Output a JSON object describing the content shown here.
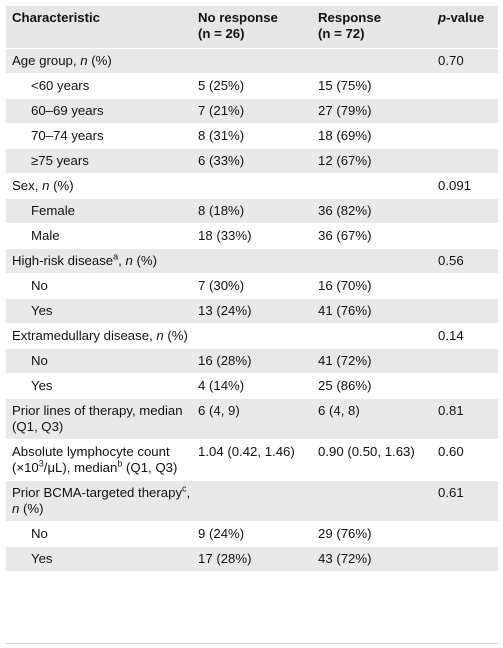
{
  "header": {
    "characteristic": "Characteristic",
    "no_response": "No response",
    "no_response_n": "(n = 26)",
    "response": "Response",
    "response_n": "(n = 72)",
    "pvalue_p": "p",
    "pvalue_rest": "-value"
  },
  "rows": {
    "age_group": {
      "label": "Age group, ",
      "n": "n",
      "rest": " (%)",
      "p": "0.70"
    },
    "age_lt60": {
      "label": "<60 years",
      "no": "5 (25%)",
      "yes": "15 (75%)"
    },
    "age_60_69": {
      "label": "60–69 years",
      "no": "7 (21%)",
      "yes": "27 (79%)"
    },
    "age_70_74": {
      "label": "70–74 years",
      "no": "8 (31%)",
      "yes": "18 (69%)"
    },
    "age_ge75": {
      "label": "≥75 years",
      "no": "6 (33%)",
      "yes": "12 (67%)"
    },
    "sex": {
      "label": "Sex, ",
      "n": "n",
      "rest": " (%)",
      "p": "0.091"
    },
    "female": {
      "label": "Female",
      "no": "8 (18%)",
      "yes": "36 (82%)"
    },
    "male": {
      "label": "Male",
      "no": "18 (33%)",
      "yes": "36 (67%)"
    },
    "high_risk": {
      "label": "High-risk disease",
      "sup": "a",
      "mid": ", ",
      "n": "n",
      "rest": " (%)",
      "p": "0.56"
    },
    "hr_no": {
      "label": "No",
      "no": "7 (30%)",
      "yes": "16 (70%)"
    },
    "hr_yes": {
      "label": "Yes",
      "no": "13 (24%)",
      "yes": "41 (76%)"
    },
    "extramed": {
      "label": "Extramedullary disease, ",
      "n": "n",
      "rest": " (%)",
      "p": "0.14"
    },
    "em_no": {
      "label": "No",
      "no": "16 (28%)",
      "yes": "41 (72%)"
    },
    "em_yes": {
      "label": "Yes",
      "no": "4 (14%)",
      "yes": "25 (86%)"
    },
    "prior_lines": {
      "label": "Prior lines of therapy, median (Q1, Q3)",
      "no": "6 (4, 9)",
      "yes": "6 (4, 8)",
      "p": "0.81"
    },
    "alc": {
      "label_a": "Absolute lymphocyte count (×10",
      "exp": "3",
      "label_b": "/μL), median",
      "sup": "b",
      "label_c": " (Q1, Q3)",
      "no": "1.04 (0.42, 1.46)",
      "yes": "0.90 (0.50, 1.63)",
      "p": "0.60"
    },
    "bcma": {
      "label": "Prior BCMA-targeted therapy",
      "sup": "c",
      "mid": ", ",
      "n": "n",
      "rest": " (%)",
      "p": "0.61"
    },
    "bcma_no": {
      "label": "No",
      "no": "9 (24%)",
      "yes": "29 (76%)"
    },
    "bcma_yes": {
      "label": "Yes",
      "no": "17 (28%)",
      "yes": "43 (72%)"
    }
  }
}
